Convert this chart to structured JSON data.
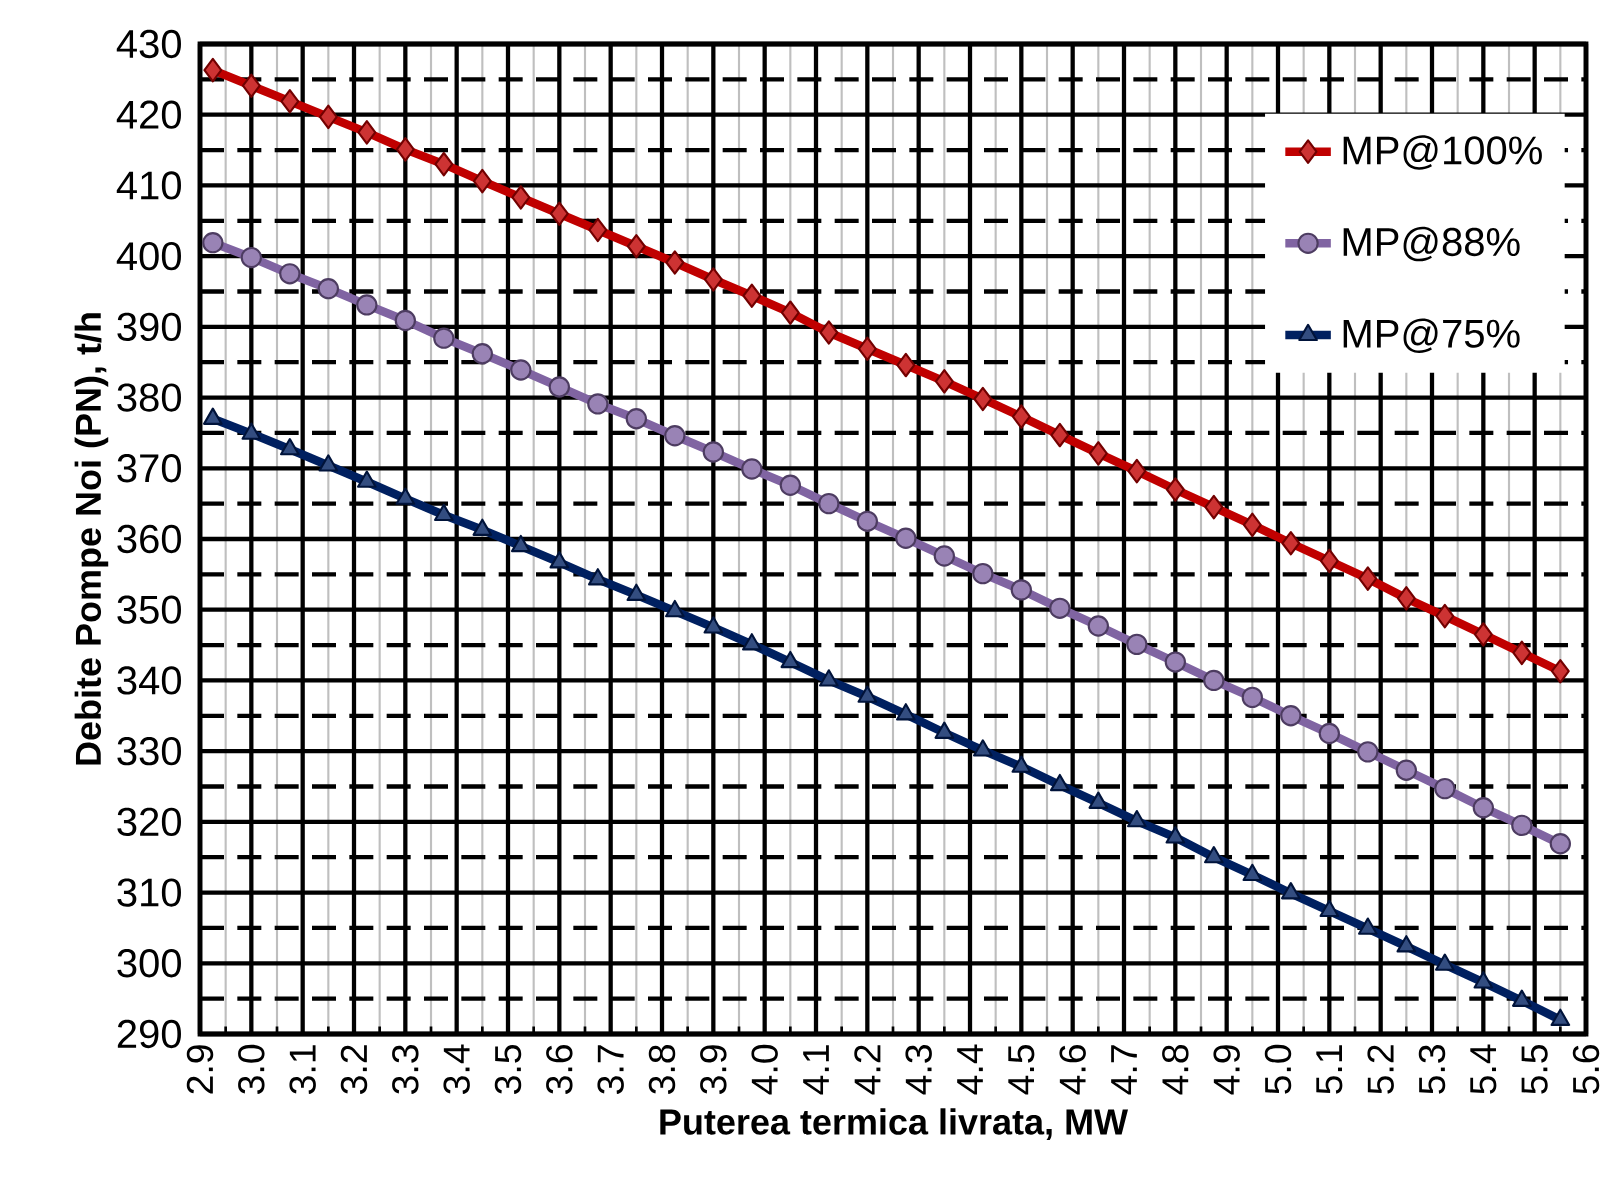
{
  "chart_data": {
    "type": "line",
    "xlabel": "Puterea termica livrata, MW",
    "ylabel": "Debite Pompe Noi (PN), t/h",
    "x": [
      2.925,
      3.0,
      3.075,
      3.15,
      3.225,
      3.3,
      3.375,
      3.45,
      3.525,
      3.6,
      3.675,
      3.75,
      3.825,
      3.9,
      3.975,
      4.05,
      4.125,
      4.2,
      4.275,
      4.35,
      4.425,
      4.5,
      4.575,
      4.65,
      4.725,
      4.8,
      4.875,
      4.95,
      5.025,
      5.1,
      5.175,
      5.25,
      5.325,
      5.4,
      5.475,
      5.55
    ],
    "series": [
      {
        "name": "MP@100%",
        "color": "#c00000",
        "marker": "diamond",
        "values": [
          426.3,
          424.1,
          421.9,
          419.7,
          417.5,
          415.1,
          413.0,
          410.6,
          408.3,
          406.0,
          403.7,
          401.4,
          399.1,
          396.7,
          394.4,
          392.0,
          389.2,
          386.9,
          384.6,
          382.3,
          379.8,
          377.3,
          374.7,
          372.1,
          369.6,
          367.0,
          364.5,
          362.0,
          359.4,
          356.9,
          354.4,
          351.6,
          349.1,
          346.5,
          343.9,
          341.3
        ]
      },
      {
        "name": "MP@88%",
        "color": "#8064a2",
        "marker": "circle",
        "values": [
          401.9,
          399.8,
          397.5,
          395.4,
          393.1,
          390.9,
          388.4,
          386.2,
          383.9,
          381.5,
          379.1,
          377.0,
          374.6,
          372.3,
          369.9,
          367.6,
          365.0,
          362.5,
          360.1,
          357.6,
          355.1,
          352.8,
          350.2,
          347.7,
          345.1,
          342.6,
          340.0,
          337.6,
          335.0,
          332.5,
          329.9,
          327.3,
          324.7,
          322.0,
          319.5,
          316.9
        ]
      },
      {
        "name": "MP@75%",
        "color": "#002060",
        "marker": "triangle",
        "values": [
          377.0,
          374.9,
          372.7,
          370.4,
          368.1,
          365.7,
          363.4,
          361.3,
          359.0,
          356.7,
          354.3,
          352.1,
          349.8,
          347.5,
          345.1,
          342.6,
          340.0,
          337.7,
          335.2,
          332.6,
          330.1,
          327.8,
          325.2,
          322.7,
          320.1,
          317.8,
          315.0,
          312.5,
          309.9,
          307.4,
          304.9,
          302.4,
          299.8,
          297.3,
          294.7,
          292.0
        ]
      }
    ],
    "xlim": [
      2.9,
      5.6
    ],
    "xticks": [
      2.9,
      {
        "value": 3.0,
        "label": "3.0"
      },
      3.1,
      3.2,
      3.3,
      3.4,
      3.5,
      3.6,
      3.7,
      3.8,
      3.9,
      {
        "value": 4.0,
        "label": "4.0"
      },
      4.1,
      4.2,
      4.3,
      4.4,
      4.5,
      4.6,
      4.7,
      4.8,
      4.9,
      {
        "value": 5.0,
        "label": "5.0"
      },
      5.1,
      5.2,
      5.3,
      5.4,
      5.5,
      5.6
    ],
    "ylim": [
      290,
      430
    ],
    "yticks": [
      290,
      300,
      310,
      320,
      330,
      340,
      350,
      360,
      370,
      380,
      390,
      400,
      410,
      420,
      430
    ],
    "grid": true,
    "legend": "top right",
    "line_style": "solid"
  }
}
